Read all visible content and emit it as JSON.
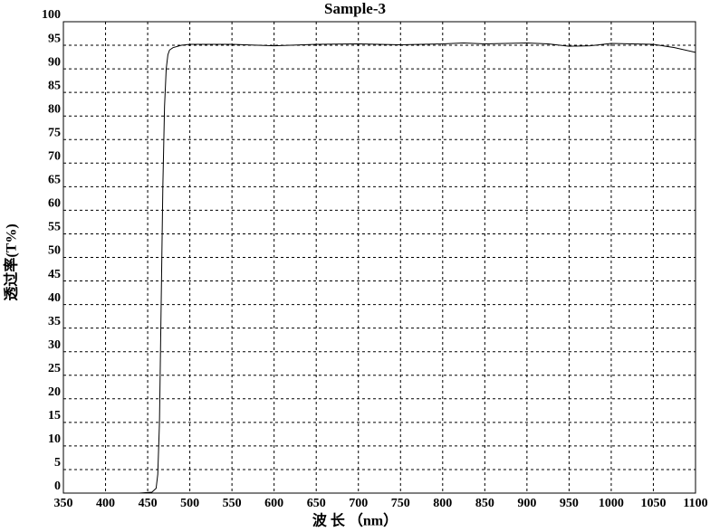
{
  "chart_data": {
    "type": "line",
    "title": "Sample-3",
    "x_label": "波 长 （nm）",
    "y_label": "透过率(T%)",
    "x": [
      350,
      400,
      440,
      455,
      460,
      462,
      464,
      466,
      468,
      470,
      472,
      474,
      476,
      480,
      490,
      500,
      550,
      600,
      650,
      700,
      750,
      800,
      825,
      850,
      900,
      925,
      950,
      975,
      1000,
      1050,
      1075,
      1100
    ],
    "values": [
      0,
      0,
      0,
      0.2,
      1,
      4,
      15,
      40,
      65,
      82,
      90,
      93,
      94,
      94.5,
      95,
      95.2,
      95.2,
      94.9,
      95.2,
      95.3,
      95.1,
      95.3,
      95.5,
      95.3,
      95.5,
      95.3,
      94.8,
      94.9,
      95.4,
      95.2,
      94.5,
      93.5
    ],
    "color": "#000000",
    "xlim": [
      350,
      1100
    ],
    "ylim": [
      0,
      100
    ],
    "xticks": [
      350,
      400,
      450,
      500,
      550,
      600,
      650,
      700,
      750,
      800,
      850,
      900,
      950,
      1000,
      1050,
      1100
    ],
    "yticks": [
      0,
      5,
      10,
      15,
      20,
      25,
      30,
      35,
      40,
      45,
      50,
      55,
      60,
      65,
      70,
      75,
      80,
      85,
      90,
      95,
      100
    ],
    "grid": true
  }
}
